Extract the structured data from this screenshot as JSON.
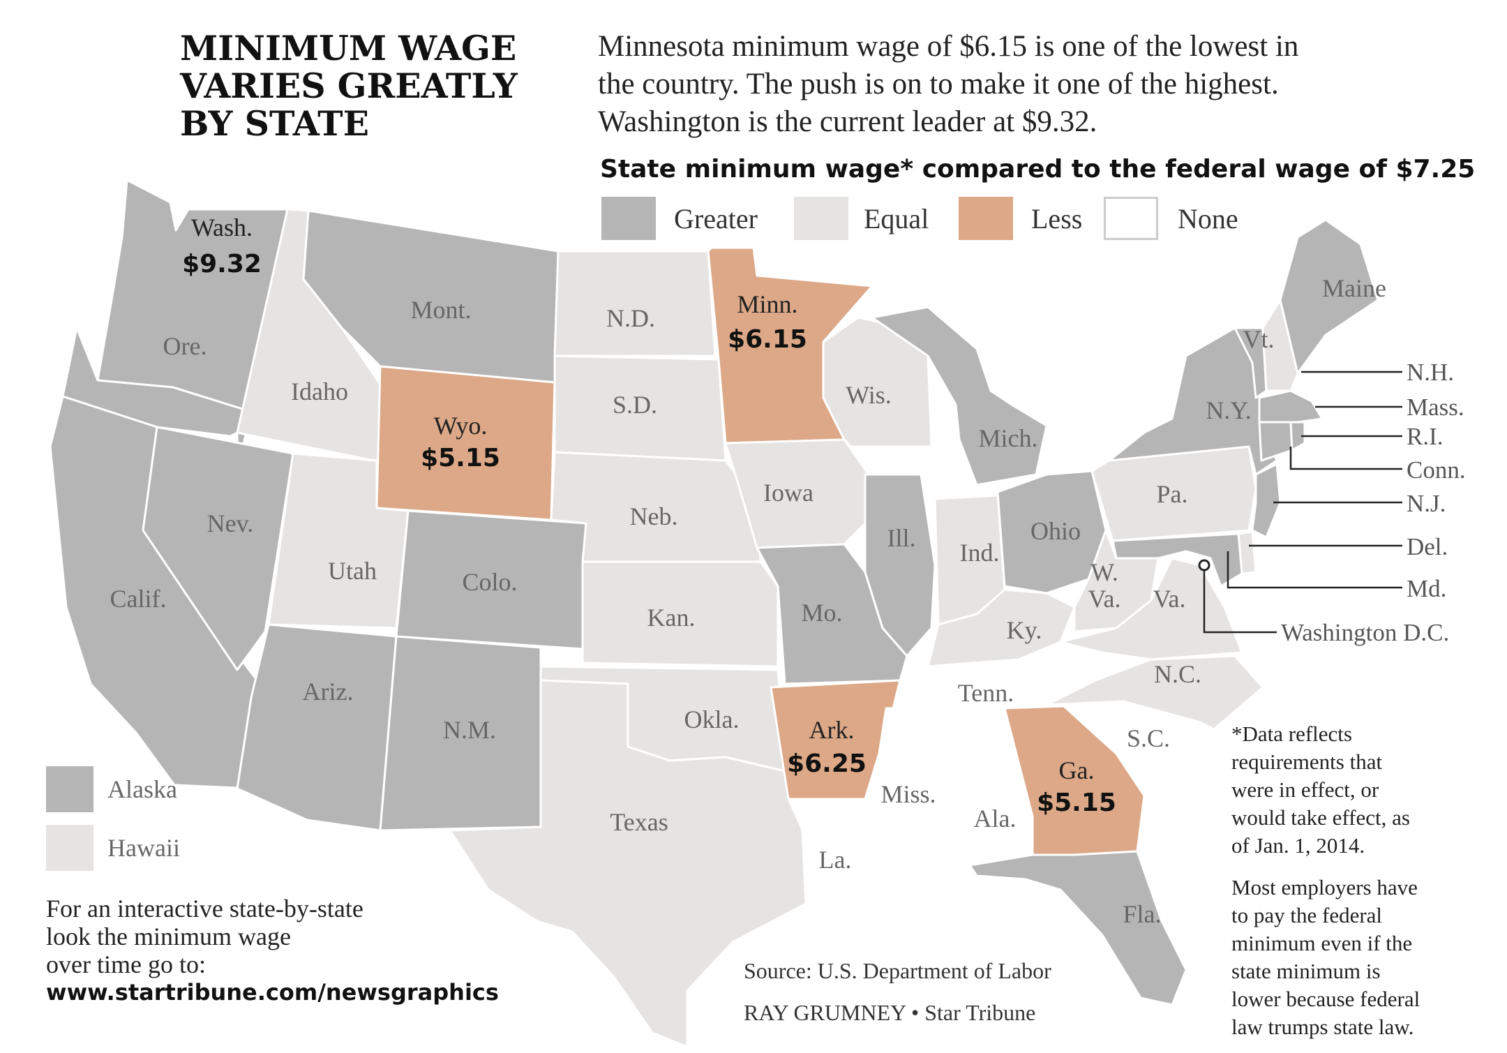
{
  "title_lines": [
    "MINIMUM WAGE",
    "VARIES GREATLY",
    "BY STATE"
  ],
  "intro_lines": [
    "Minnesota minimum wage of $6.15 is one of the lowest in",
    "the country. The push is on to make it one of the highest.",
    "Washington is the current leader at $9.32."
  ],
  "legend": {
    "title": "State minimum wage* compared to the federal wage of $7.25",
    "items": [
      {
        "label": "Greater",
        "color": "#b5b5b5"
      },
      {
        "label": "Equal",
        "color": "#e6e4e2"
      },
      {
        "label": "Less",
        "color": "#dca887"
      },
      {
        "label": "None",
        "color": "#ffffff"
      }
    ]
  },
  "states": {
    "wa": {
      "label": "Wash.",
      "wage": "$9.32",
      "category": "Greater"
    },
    "or": {
      "label": "Ore.",
      "category": "Greater"
    },
    "ca": {
      "label": "Calif.",
      "category": "Greater"
    },
    "nv": {
      "label": "Nev.",
      "category": "Greater"
    },
    "id": {
      "label": "Idaho",
      "category": "Equal"
    },
    "mt": {
      "label": "Mont.",
      "category": "Greater"
    },
    "wy": {
      "label": "Wyo.",
      "wage": "$5.15",
      "category": "Less"
    },
    "ut": {
      "label": "Utah",
      "category": "Equal"
    },
    "co": {
      "label": "Colo.",
      "category": "Greater"
    },
    "az": {
      "label": "Ariz.",
      "category": "Greater"
    },
    "nm": {
      "label": "N.M.",
      "category": "Greater"
    },
    "nd": {
      "label": "N.D.",
      "category": "Equal"
    },
    "sd": {
      "label": "S.D.",
      "category": "Equal"
    },
    "ne": {
      "label": "Neb.",
      "category": "Equal"
    },
    "ks": {
      "label": "Kan.",
      "category": "Equal"
    },
    "ok": {
      "label": "Okla.",
      "category": "Equal"
    },
    "tx": {
      "label": "Texas",
      "category": "Equal"
    },
    "mn": {
      "label": "Minn.",
      "wage": "$6.15",
      "category": "Less"
    },
    "ia": {
      "label": "Iowa",
      "category": "Equal"
    },
    "mo": {
      "label": "Mo.",
      "category": "Greater"
    },
    "ar": {
      "label": "Ark.",
      "wage": "$6.25",
      "category": "Less"
    },
    "la": {
      "label": "La.",
      "category": "None"
    },
    "wi": {
      "label": "Wis.",
      "category": "Equal"
    },
    "il": {
      "label": "Ill.",
      "category": "Greater"
    },
    "mi": {
      "label": "Mich.",
      "category": "Greater"
    },
    "in": {
      "label": "Ind.",
      "category": "Equal"
    },
    "oh": {
      "label": "Ohio",
      "category": "Greater"
    },
    "ky": {
      "label": "Ky.",
      "category": "Equal"
    },
    "tn": {
      "label": "Tenn.",
      "category": "None"
    },
    "ms": {
      "label": "Miss.",
      "category": "None"
    },
    "al": {
      "label": "Ala.",
      "category": "None"
    },
    "ga": {
      "label": "Ga.",
      "wage": "$5.15",
      "category": "Less"
    },
    "fl": {
      "label": "Fla.",
      "category": "Greater"
    },
    "sc": {
      "label": "S.C.",
      "category": "None"
    },
    "nc": {
      "label": "N.C.",
      "category": "Equal"
    },
    "va": {
      "label": "Va.",
      "category": "Equal"
    },
    "wv": {
      "label_line1": "W.",
      "label_line2": "Va.",
      "category": "Equal"
    },
    "pa": {
      "label": "Pa.",
      "category": "Equal"
    },
    "ny": {
      "label": "N.Y.",
      "category": "Greater"
    },
    "vt": {
      "label": "Vt.",
      "category": "Greater"
    },
    "me": {
      "label": "Maine",
      "category": "Greater"
    },
    "nh": {
      "label": "N.H.",
      "category": "Equal"
    },
    "ma": {
      "label": "Mass.",
      "category": "Greater"
    },
    "ri": {
      "label": "R.I.",
      "category": "Greater"
    },
    "ct": {
      "label": "Conn.",
      "category": "Greater"
    },
    "nj": {
      "label": "N.J.",
      "category": "Greater"
    },
    "de": {
      "label": "Del.",
      "category": "Equal"
    },
    "md": {
      "label": "Md.",
      "category": "Greater"
    },
    "dc": {
      "label": "Washington D.C.",
      "category": "Greater"
    }
  },
  "insets": [
    {
      "label": "Alaska",
      "category": "Greater"
    },
    {
      "label": "Hawaii",
      "category": "Equal"
    }
  ],
  "cta_lines": [
    "For an interactive state-by-state",
    "look the minimum wage",
    "over time go to:"
  ],
  "cta_url": "www.startribune.com/newsgraphics",
  "source": "Source: U.S. Department of Labor",
  "credit": "RAY GRUMNEY • Star Tribune",
  "footnote_lines": [
    "*Data reflects",
    "requirements that",
    "were in effect, or",
    "would take effect, as",
    "of Jan. 1, 2014."
  ],
  "note_lines": [
    "Most employers have",
    "to pay the federal",
    "minimum even if the",
    "state minimum is",
    "lower because federal",
    "law trumps state law."
  ]
}
